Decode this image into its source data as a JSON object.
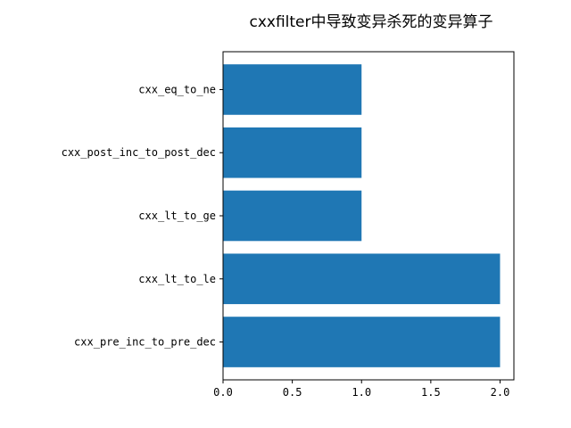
{
  "chart_data": {
    "type": "bar",
    "orientation": "horizontal",
    "title": "cxxfilter中导致变异杀死的变异算子",
    "xlabel": "",
    "ylabel": "",
    "categories": [
      "cxx_pre_inc_to_pre_dec",
      "cxx_lt_to_le",
      "cxx_lt_to_ge",
      "cxx_post_inc_to_post_dec",
      "cxx_eq_to_ne"
    ],
    "values": [
      2,
      2,
      1,
      1,
      1
    ],
    "xlim": [
      0,
      2.1
    ],
    "xticks": [
      0.0,
      0.5,
      1.0,
      1.5,
      2.0
    ],
    "xtick_labels": [
      "0.0",
      "0.5",
      "1.0",
      "1.5",
      "2.0"
    ],
    "grid": false,
    "bar_color": "#1f77b4"
  }
}
